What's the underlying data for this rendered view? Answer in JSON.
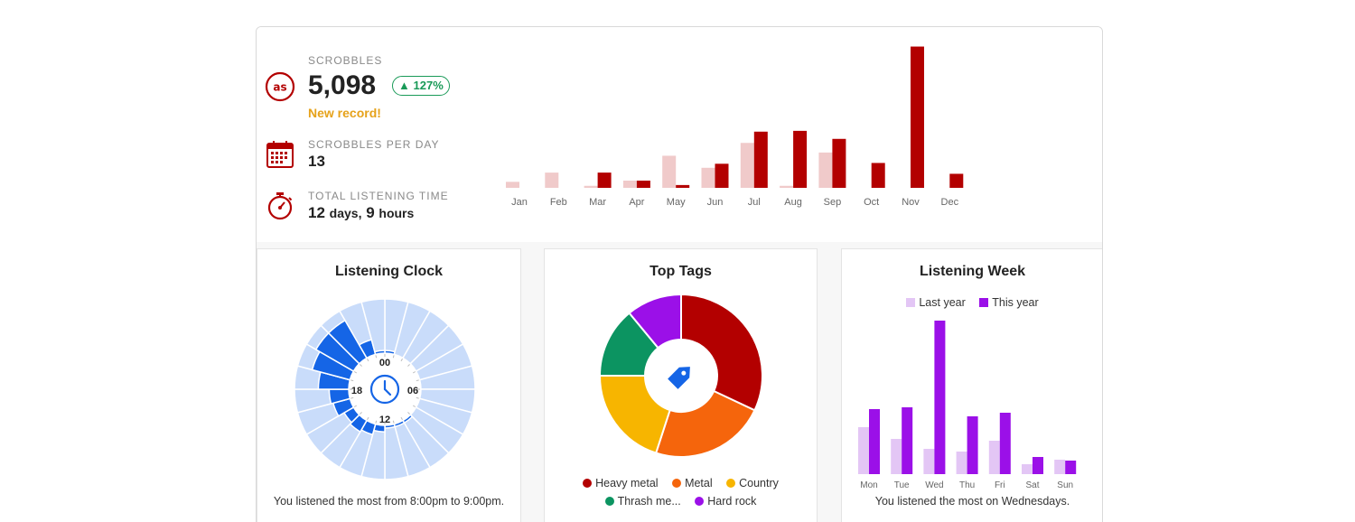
{
  "summary": {
    "scrobbles": {
      "label": "SCROBBLES",
      "value": "5,098",
      "change": "127%",
      "note": "New record!"
    },
    "per_day": {
      "label": "SCROBBLES PER DAY",
      "value": "13"
    },
    "listening_time": {
      "label": "TOTAL LISTENING TIME",
      "days": "12",
      "days_unit": "days,",
      "hours": "9",
      "hours_unit": "hours"
    }
  },
  "icons": {
    "scrobbles": "lastfm-icon",
    "per_day": "calendar-icon",
    "time": "stopwatch-icon",
    "clock_center": "clock-icon",
    "tags_center": "tag-icon"
  },
  "colors": {
    "accent_red": "#b30000",
    "light_red": "#f0caca",
    "green": "#1a9a58",
    "orange_note": "#e6a21a",
    "clock_strong": "#1565e6",
    "clock_light": "#c9dcfa",
    "purple": "#9b10e8",
    "light_purple": "#e3c6f5"
  },
  "chart_data": [
    {
      "type": "bar",
      "categories": [
        "Jan",
        "Feb",
        "Mar",
        "Apr",
        "May",
        "Jun",
        "Jul",
        "Aug",
        "Sep",
        "Oct",
        "Nov",
        "Dec"
      ],
      "series": [
        {
          "values": [
            15,
            38,
            5,
            18,
            80,
            50,
            112,
            5,
            88,
            0,
            0,
            0
          ]
        },
        {
          "values": [
            0,
            0,
            38,
            18,
            7,
            60,
            140,
            142,
            122,
            62,
            352,
            35
          ]
        }
      ],
      "title": "",
      "xlabel": "",
      "ylabel": "",
      "ylim": [
        0,
        360
      ]
    },
    {
      "type": "bar",
      "title": "Listening Clock",
      "categories": [
        "00",
        "01",
        "02",
        "03",
        "04",
        "05",
        "06",
        "07",
        "08",
        "09",
        "10",
        "11",
        "12",
        "13",
        "14",
        "15",
        "16",
        "17",
        "18",
        "19",
        "20",
        "21",
        "22",
        "23"
      ],
      "values": [
        1,
        0,
        0,
        0,
        0,
        0,
        0,
        0,
        0,
        1,
        1,
        1,
        3,
        5,
        6,
        5,
        8,
        9,
        14,
        18,
        20,
        20,
        7,
        1
      ],
      "ylim": [
        0,
        20
      ],
      "axis_labels": [
        "00",
        "06",
        "12",
        "18"
      ],
      "caption": "You listened the most from 8:00pm to 9:00pm."
    },
    {
      "type": "pie",
      "title": "Top Tags",
      "slices": [
        {
          "name": "Heavy metal",
          "value": 32,
          "color": "#b30000"
        },
        {
          "name": "Metal",
          "value": 23,
          "color": "#f5650c"
        },
        {
          "name": "Country",
          "value": 20,
          "color": "#f7b500"
        },
        {
          "name": "Thrash me...",
          "value": 14,
          "color": "#0c9461"
        },
        {
          "name": "Hard rock",
          "value": 11,
          "color": "#9b10e8"
        }
      ]
    },
    {
      "type": "bar",
      "title": "Listening Week",
      "categories": [
        "Mon",
        "Tue",
        "Wed",
        "Thu",
        "Fri",
        "Sat",
        "Sun"
      ],
      "series": [
        {
          "name": "Last year",
          "values": [
            52,
            39,
            28,
            25,
            37,
            11,
            16
          ],
          "color": "#e3c6f5"
        },
        {
          "name": "This year",
          "values": [
            72,
            74,
            170,
            64,
            68,
            19,
            15
          ],
          "color": "#9b10e8"
        }
      ],
      "ylim": [
        0,
        170
      ],
      "legend": "top",
      "caption": "You listened the most on Wednesdays."
    }
  ]
}
